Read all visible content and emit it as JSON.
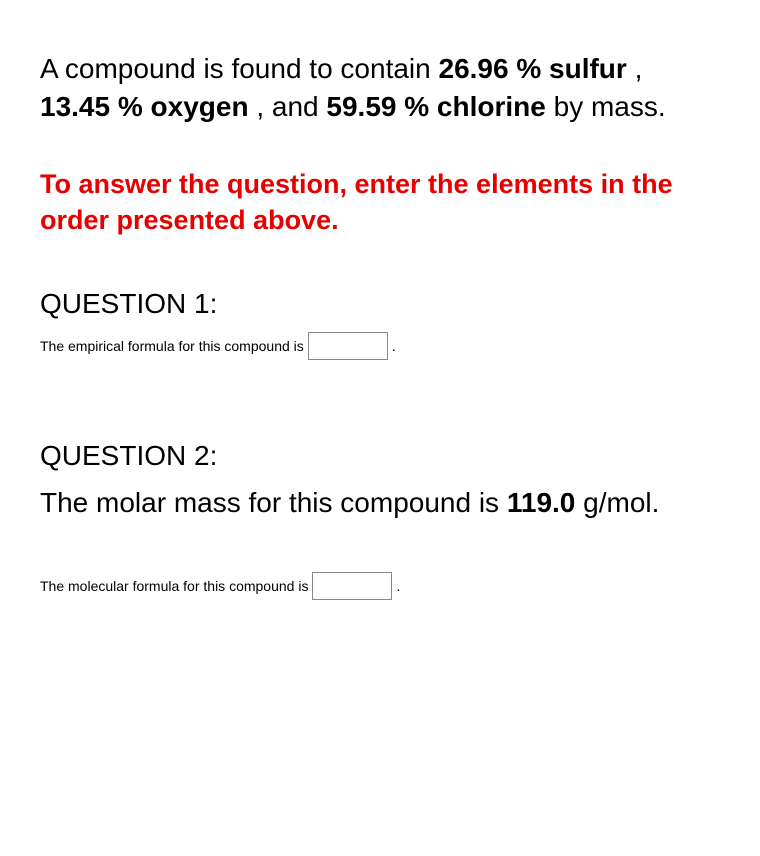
{
  "intro": {
    "part1": "A compound is found to contain ",
    "sulfur_pct": "26.96 % sulfur",
    "sep1": " , ",
    "oxygen_pct": "13.45 % oxygen",
    "sep2": " , and ",
    "chlorine_pct": "59.59 % chlorine",
    "part2": " by mass."
  },
  "instruction_text": "To answer the question, enter the elements in the order presented above.",
  "question1": {
    "heading": "QUESTION 1:",
    "prompt": "The empirical formula for this compound is",
    "period": "."
  },
  "question2": {
    "heading": "QUESTION 2:",
    "body_part1": "The molar mass for this compound is ",
    "molar_mass": "119.0",
    "body_part2": " g/mol.",
    "prompt": "The molecular formula for this compound is",
    "period": "."
  },
  "colors": {
    "text": "#000000",
    "red": "#e60000",
    "input_border": "#888888",
    "background": "#ffffff"
  }
}
